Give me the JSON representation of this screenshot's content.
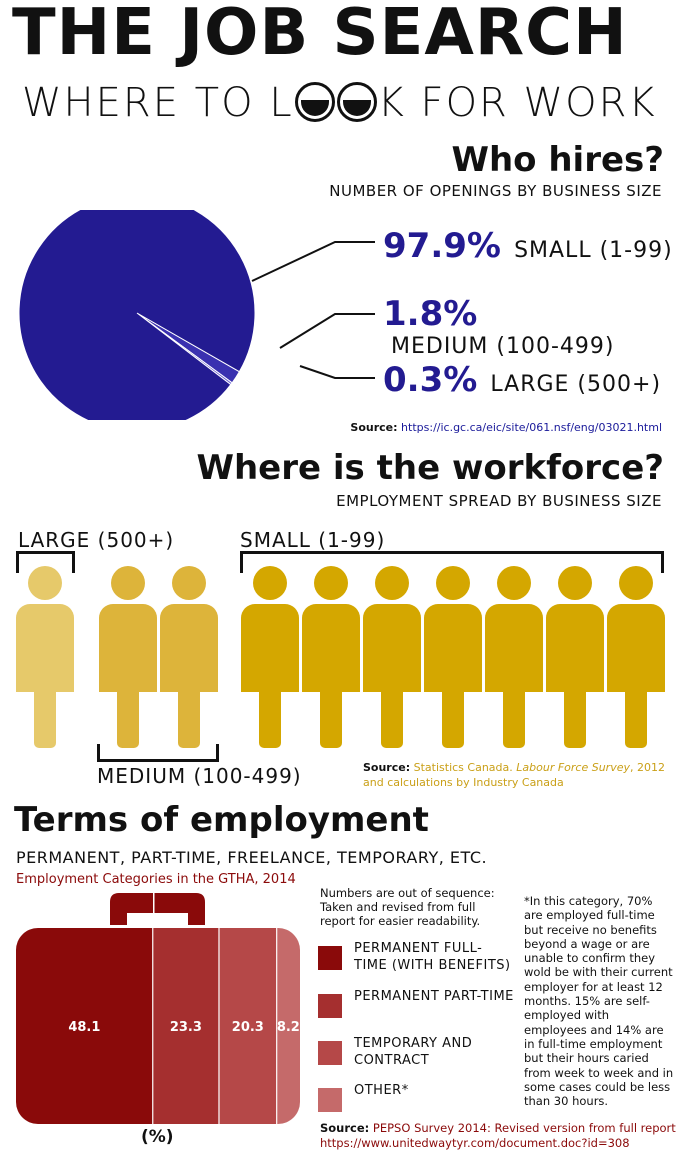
{
  "title": "THE JOB SEARCH",
  "subtitle_before": "WHERE TO L",
  "subtitle_after": "K FOR WORK",
  "hires": {
    "heading": "Who hires?",
    "subheading": "NUMBER OF OPENINGS BY BUSINESS SIZE",
    "source_label": "Source:",
    "source_link": "https://ic.gc.ca/eic/site/061.nsf/eng/03021.html"
  },
  "workforce": {
    "heading": "Where is the workforce?",
    "subheading": "EMPLOYMENT SPREAD BY BUSINESS SIZE",
    "label_large": "LARGE (500+)",
    "label_small": "SMALL (1-99)",
    "label_medium": "MEDIUM (100-499)",
    "source_label": "Source:",
    "source_text_1": "Statistics Canada.",
    "source_italic": "Labour Force Survey",
    "source_text_2": ", 2012",
    "source_line2": "and calculations by Industry Canada"
  },
  "terms": {
    "heading": "Terms of employment",
    "subheading": "PERMANENT, PART-TIME, FREELANCE, TEMPORARY, ETC.",
    "chart_title": "Employment Categories in the GTHA, 2014",
    "note": "Numbers are out of sequence: Taken and revised from full report for easier readability.",
    "footnote": "*In this category, 70% are employed full-time but receive no benefits beyond a wage or are unable to confirm they wold be with their current employer for at least 12 months. 15% are self-employed with employees and 14% are in full-time employment but their hours caried from week to week and in some cases could be less than 30 hours.",
    "pct_label": "(%)",
    "source_label": "Source:",
    "source_text": "PEPSO Survey 2014: Revised version from full report",
    "source_link": "https://www.unitedwaytyr.com/document.doc?id=308"
  },
  "chart_data": [
    {
      "type": "pie",
      "title": "Who hires?",
      "subtitle": "NUMBER OF OPENINGS BY BUSINESS SIZE",
      "categories": [
        "SMALL (1-99)",
        "MEDIUM (100-499)",
        "LARGE (500+)"
      ],
      "values": [
        97.9,
        1.8,
        0.3
      ],
      "value_labels": [
        "97.9%",
        "1.8%",
        "0.3%"
      ],
      "colors": [
        "#231b91",
        "#3a31b0",
        "#6e66d0"
      ]
    },
    {
      "type": "bar",
      "title": "Where is the workforce?",
      "subtitle": "EMPLOYMENT SPREAD BY BUSINESS SIZE",
      "categories": [
        "LARGE (500+)",
        "MEDIUM (100-499)",
        "SMALL (1-99)"
      ],
      "values": [
        1,
        2,
        7
      ],
      "colors": [
        "#e6c96a",
        "#ddb43a",
        "#d4a700"
      ]
    },
    {
      "type": "bar",
      "title": "Employment Categories in the GTHA, 2014",
      "categories": [
        "PERMANENT FULL-TIME (WITH BENEFITS)",
        "PERMANENT PART-TIME",
        "TEMPORARY AND CONTRACT",
        "OTHER*"
      ],
      "values": [
        48.1,
        23.3,
        20.3,
        8.2
      ],
      "unit": "(%)",
      "colors": [
        "#8a0a0a",
        "#a52f2f",
        "#b54848",
        "#c56a6a"
      ]
    }
  ]
}
